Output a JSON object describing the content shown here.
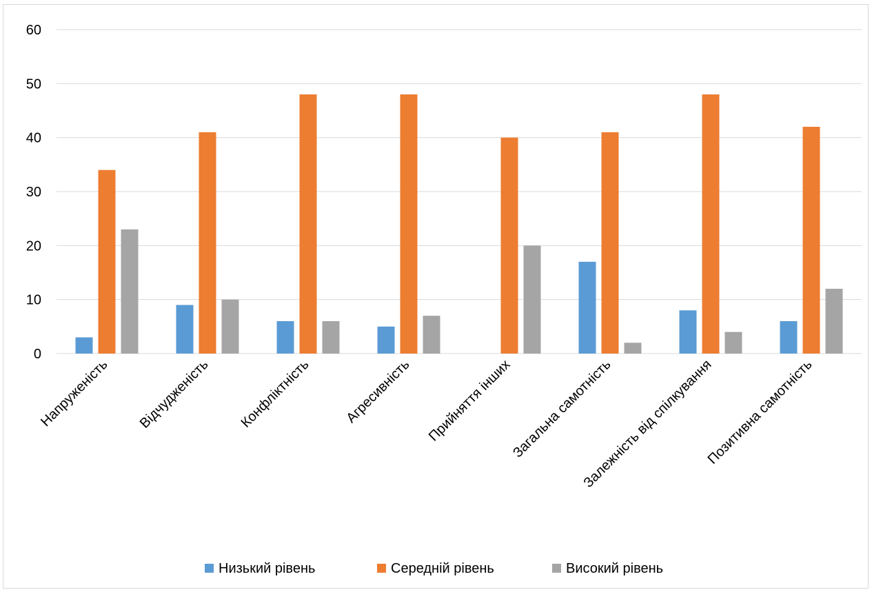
{
  "chart_data": {
    "type": "bar",
    "categories": [
      "Напруженість",
      "Відчудженість",
      "Конфліктність",
      "Агресивність",
      "Прийняття інших",
      "Загальна самотність",
      "Залежність від спілкування",
      "Позитивна самотність"
    ],
    "series": [
      {
        "name": "Низький рівень",
        "color": "#5b9bd5",
        "values": [
          3,
          9,
          6,
          5,
          0,
          17,
          8,
          6
        ]
      },
      {
        "name": "Середній рівень",
        "color": "#ed7d31",
        "values": [
          34,
          41,
          48,
          48,
          40,
          41,
          48,
          42
        ]
      },
      {
        "name": "Високий рівень",
        "color": "#a5a5a5",
        "values": [
          23,
          10,
          6,
          7,
          20,
          2,
          4,
          12
        ]
      }
    ],
    "ylim": [
      0,
      60
    ],
    "yticks": [
      "0",
      "10",
      "20",
      "30",
      "40",
      "50",
      "60"
    ],
    "grid": true,
    "legend_position": "bottom"
  }
}
